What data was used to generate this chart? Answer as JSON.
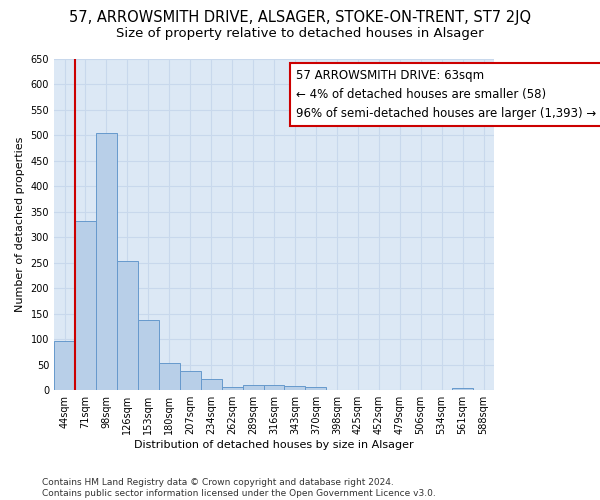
{
  "title": "57, ARROWSMITH DRIVE, ALSAGER, STOKE-ON-TRENT, ST7 2JQ",
  "subtitle": "Size of property relative to detached houses in Alsager",
  "xlabel": "Distribution of detached houses by size in Alsager",
  "ylabel": "Number of detached properties",
  "bar_labels": [
    "44sqm",
    "71sqm",
    "98sqm",
    "126sqm",
    "153sqm",
    "180sqm",
    "207sqm",
    "234sqm",
    "262sqm",
    "289sqm",
    "316sqm",
    "343sqm",
    "370sqm",
    "398sqm",
    "425sqm",
    "452sqm",
    "479sqm",
    "506sqm",
    "534sqm",
    "561sqm",
    "588sqm"
  ],
  "bar_values": [
    97,
    333,
    505,
    253,
    138,
    53,
    37,
    22,
    7,
    11,
    11,
    8,
    6,
    0,
    0,
    0,
    0,
    0,
    0,
    5,
    0
  ],
  "bar_color": "#b8cfe8",
  "bar_edge_color": "#6699cc",
  "highlight_color": "#cc0000",
  "annotation_line1": "57 ARROWSMITH DRIVE: 63sqm",
  "annotation_line2": "← 4% of detached houses are smaller (58)",
  "annotation_line3": "96% of semi-detached houses are larger (1,393) →",
  "annotation_box_color": "#ffffff",
  "annotation_box_edge": "#cc0000",
  "ylim": [
    0,
    650
  ],
  "yticks": [
    0,
    50,
    100,
    150,
    200,
    250,
    300,
    350,
    400,
    450,
    500,
    550,
    600,
    650
  ],
  "footer_line1": "Contains HM Land Registry data © Crown copyright and database right 2024.",
  "footer_line2": "Contains public sector information licensed under the Open Government Licence v3.0.",
  "grid_color": "#c8d8ec",
  "bg_color": "#ffffff",
  "plot_bg_color": "#dce8f5",
  "title_fontsize": 10.5,
  "subtitle_fontsize": 9.5,
  "label_fontsize": 8,
  "tick_fontsize": 7,
  "footer_fontsize": 6.5,
  "annot_fontsize": 8.5
}
